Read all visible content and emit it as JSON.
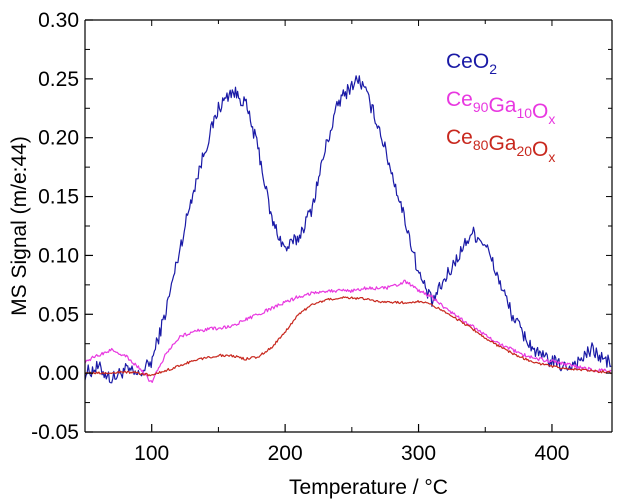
{
  "chart_data": {
    "type": "line",
    "xlabel": "Temperature / °C",
    "ylabel": "MS Signal (m/e:44)",
    "xlim": [
      50,
      445
    ],
    "ylim": [
      -0.05,
      0.3
    ],
    "x_ticks": [
      100,
      200,
      300,
      400
    ],
    "x_tick_labels": [
      "100",
      "200",
      "300",
      "400"
    ],
    "y_ticks": [
      -0.05,
      0.0,
      0.05,
      0.1,
      0.15,
      0.2,
      0.25,
      0.3
    ],
    "y_tick_labels": [
      "-0.05",
      "0.00",
      "0.05",
      "0.10",
      "0.15",
      "0.20",
      "0.25",
      "0.30"
    ],
    "grid": false,
    "legend_position": "top-right",
    "series": [
      {
        "name": "CeO2",
        "label_base": "CeO",
        "label_sub": "2",
        "color": "#1a1aa6",
        "noise": 0.006,
        "x": [
          50,
          60,
          70,
          80,
          90,
          100,
          110,
          120,
          130,
          140,
          150,
          160,
          170,
          180,
          190,
          200,
          210,
          220,
          230,
          240,
          250,
          255,
          260,
          270,
          280,
          290,
          300,
          310,
          320,
          330,
          340,
          350,
          360,
          370,
          380,
          390,
          400,
          410,
          420,
          430,
          440,
          445
        ],
        "y": [
          0.0,
          0.005,
          -0.005,
          0.003,
          -0.002,
          0.01,
          0.05,
          0.1,
          0.15,
          0.19,
          0.225,
          0.24,
          0.23,
          0.19,
          0.13,
          0.105,
          0.115,
          0.14,
          0.19,
          0.23,
          0.245,
          0.25,
          0.24,
          0.21,
          0.17,
          0.13,
          0.085,
          0.06,
          0.08,
          0.1,
          0.12,
          0.11,
          0.08,
          0.05,
          0.03,
          0.015,
          0.01,
          0.005,
          0.01,
          0.02,
          0.01,
          0.01
        ]
      },
      {
        "name": "Ce90Ga10Ox",
        "label_base": "Ce",
        "label_parts": [
          [
            "Ce",
            ""
          ],
          [
            "90",
            "sub"
          ],
          [
            "Ga",
            ""
          ],
          [
            "10",
            "sub"
          ],
          [
            "O",
            ""
          ],
          [
            "x",
            "sub"
          ]
        ],
        "color": "#e838e0",
        "noise": 0.0015,
        "x": [
          50,
          60,
          70,
          80,
          90,
          100,
          110,
          120,
          130,
          140,
          150,
          160,
          170,
          180,
          190,
          200,
          210,
          220,
          230,
          240,
          250,
          260,
          270,
          280,
          290,
          300,
          310,
          320,
          330,
          340,
          350,
          360,
          370,
          380,
          390,
          400,
          410,
          420,
          430,
          440,
          445
        ],
        "y": [
          0.01,
          0.015,
          0.02,
          0.015,
          0.005,
          -0.008,
          0.015,
          0.03,
          0.035,
          0.037,
          0.038,
          0.04,
          0.045,
          0.05,
          0.055,
          0.06,
          0.065,
          0.068,
          0.07,
          0.07,
          0.07,
          0.072,
          0.072,
          0.073,
          0.078,
          0.07,
          0.065,
          0.055,
          0.047,
          0.04,
          0.032,
          0.025,
          0.02,
          0.015,
          0.012,
          0.01,
          0.008,
          0.005,
          0.003,
          0.002,
          0.001
        ]
      },
      {
        "name": "Ce80Ga20Ox",
        "label_parts": [
          [
            "Ce",
            ""
          ],
          [
            "80",
            "sub"
          ],
          [
            "Ga",
            ""
          ],
          [
            "20",
            "sub"
          ],
          [
            "O",
            ""
          ],
          [
            "x",
            "sub"
          ]
        ],
        "color": "#c8281e",
        "noise": 0.001,
        "x": [
          50,
          60,
          70,
          80,
          90,
          100,
          110,
          120,
          130,
          140,
          150,
          160,
          170,
          180,
          190,
          200,
          210,
          220,
          230,
          240,
          250,
          260,
          270,
          280,
          290,
          300,
          310,
          320,
          330,
          340,
          350,
          360,
          370,
          380,
          390,
          400,
          410,
          420,
          430,
          440,
          445
        ],
        "y": [
          0.0,
          0.0,
          0.0,
          0.001,
          0.0,
          -0.002,
          0.002,
          0.006,
          0.01,
          0.013,
          0.015,
          0.015,
          0.012,
          0.014,
          0.022,
          0.035,
          0.05,
          0.058,
          0.062,
          0.064,
          0.064,
          0.063,
          0.061,
          0.06,
          0.06,
          0.061,
          0.058,
          0.052,
          0.045,
          0.038,
          0.03,
          0.023,
          0.017,
          0.012,
          0.008,
          0.006,
          0.004,
          0.003,
          0.002,
          0.001,
          0.0
        ]
      }
    ]
  }
}
